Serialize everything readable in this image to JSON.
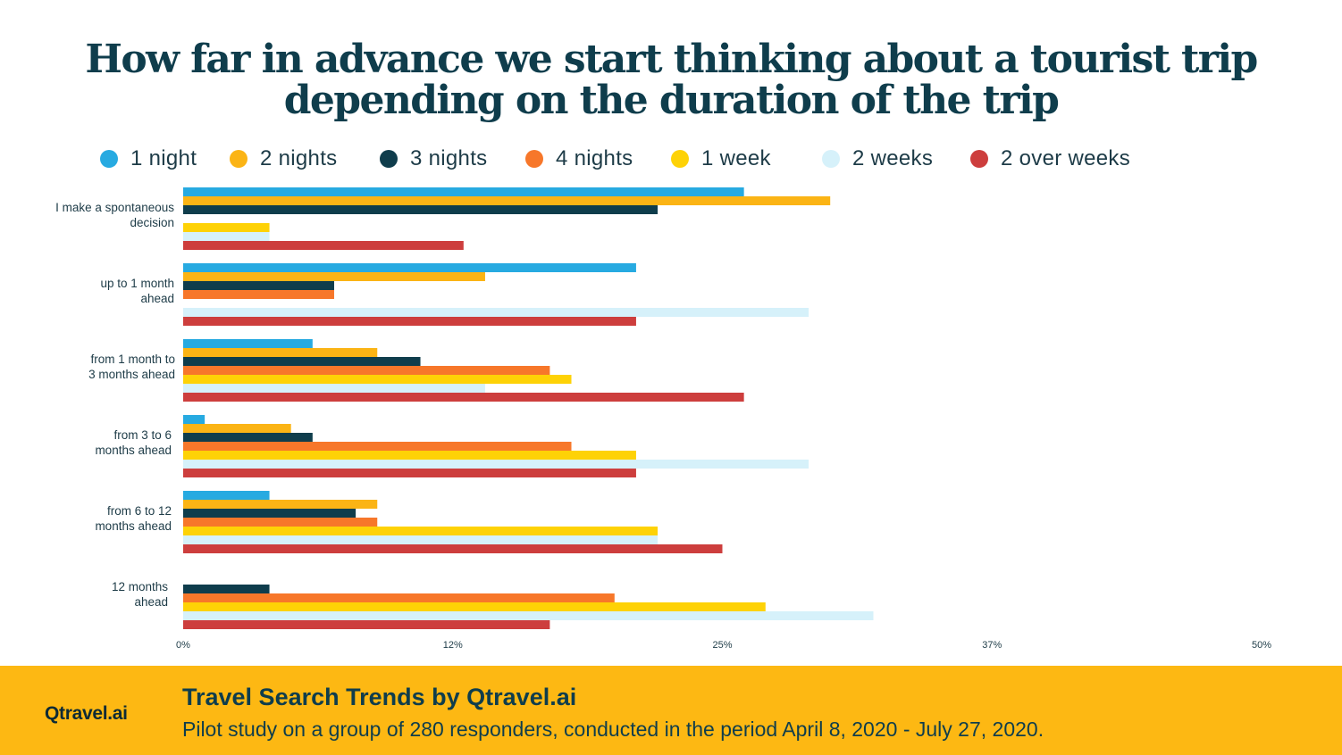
{
  "title": {
    "line1": "How far in advance we start thinking about a tourist trip",
    "line2": "depending on the duration of the trip"
  },
  "footer": {
    "brand": "Qtravel.ai",
    "title": "Travel Search Trends by Qtravel.ai",
    "subtitle": "Pilot study on a group of 280 responders, conducted in the period April 8, 2020 - July 27, 2020."
  },
  "chart_data": {
    "type": "bar",
    "orientation": "horizontal",
    "categories": [
      [
        "I make a spontaneous",
        "decision"
      ],
      [
        "up to 1 month",
        "ahead"
      ],
      [
        "from 1 month to",
        "3 months ahead"
      ],
      [
        "from 3 to 6",
        "months ahead"
      ],
      [
        "from 6 to 12",
        "months ahead"
      ],
      [
        "12 months",
        "ahead"
      ]
    ],
    "series": [
      {
        "name": "1 night",
        "color": "#27aae1",
        "values": [
          26,
          21,
          6,
          1,
          4,
          0
        ]
      },
      {
        "name": "2 nights",
        "color": "#fbb415",
        "values": [
          30,
          14,
          9,
          5,
          9,
          0
        ]
      },
      {
        "name": "3 nights",
        "color": "#0f3d4c",
        "values": [
          22,
          7,
          11,
          6,
          8,
          4
        ]
      },
      {
        "name": "4 nights",
        "color": "#f7772a",
        "values": [
          0,
          7,
          17,
          18,
          9,
          20
        ]
      },
      {
        "name": "1 week",
        "color": "#fed206",
        "values": [
          4,
          0,
          18,
          21,
          22,
          27
        ]
      },
      {
        "name": "2 weeks",
        "color": "#d6f1fa",
        "values": [
          4,
          29,
          14,
          29,
          22,
          32
        ]
      },
      {
        "name": "2 over weeks",
        "color": "#cd3e3d",
        "values": [
          13,
          21,
          26,
          21,
          25,
          17
        ]
      }
    ],
    "xlim": [
      0,
      50
    ],
    "xticks": [
      "0%",
      "12%",
      "25%",
      "37%",
      "50%"
    ],
    "legend_position": "top",
    "grid": false,
    "title": "How far in advance we start thinking about a tourist trip depending on the duration of the trip"
  }
}
